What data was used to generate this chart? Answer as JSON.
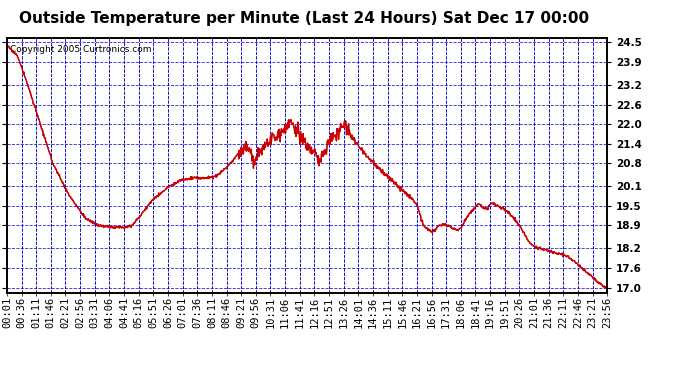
{
  "title": "Outside Temperature per Minute (Last 24 Hours) Sat Dec 17 00:00",
  "copyright": "Copyright 2005 Curtronics.com",
  "yticks": [
    17.0,
    17.6,
    18.2,
    18.9,
    19.5,
    20.1,
    20.8,
    21.4,
    22.0,
    22.6,
    23.2,
    23.9,
    24.5
  ],
  "ylim": [
    16.85,
    24.65
  ],
  "background_color": "#ffffff",
  "plot_bg_color": "#ffffff",
  "grid_color": "#0000cc",
  "line_color": "#cc0000",
  "title_fontsize": 11,
  "tick_fontsize": 7.5,
  "copyright_fontsize": 6.5,
  "xtick_labels": [
    "00:01",
    "00:36",
    "01:11",
    "01:46",
    "02:21",
    "02:56",
    "03:31",
    "04:06",
    "04:41",
    "05:16",
    "05:51",
    "06:26",
    "07:01",
    "07:36",
    "08:11",
    "08:46",
    "09:21",
    "09:56",
    "10:31",
    "11:06",
    "11:41",
    "12:16",
    "12:51",
    "13:26",
    "14:01",
    "14:36",
    "15:11",
    "15:46",
    "16:21",
    "16:56",
    "17:31",
    "18:06",
    "18:41",
    "19:16",
    "19:51",
    "20:26",
    "21:01",
    "21:36",
    "22:11",
    "22:46",
    "23:21",
    "23:56"
  ],
  "control_points": [
    [
      0,
      24.4
    ],
    [
      25,
      24.1
    ],
    [
      50,
      23.2
    ],
    [
      80,
      22.0
    ],
    [
      110,
      20.8
    ],
    [
      150,
      19.8
    ],
    [
      190,
      19.1
    ],
    [
      220,
      18.9
    ],
    [
      250,
      18.85
    ],
    [
      280,
      18.85
    ],
    [
      300,
      18.9
    ],
    [
      320,
      19.2
    ],
    [
      350,
      19.7
    ],
    [
      390,
      20.1
    ],
    [
      420,
      20.3
    ],
    [
      450,
      20.35
    ],
    [
      480,
      20.35
    ],
    [
      500,
      20.4
    ],
    [
      520,
      20.6
    ],
    [
      540,
      20.85
    ],
    [
      555,
      21.1
    ],
    [
      565,
      21.2
    ],
    [
      572,
      21.3
    ],
    [
      578,
      21.25
    ],
    [
      585,
      21.1
    ],
    [
      592,
      20.85
    ],
    [
      600,
      21.0
    ],
    [
      610,
      21.2
    ],
    [
      620,
      21.35
    ],
    [
      632,
      21.5
    ],
    [
      645,
      21.6
    ],
    [
      658,
      21.75
    ],
    [
      668,
      21.9
    ],
    [
      675,
      22.1
    ],
    [
      682,
      22.0
    ],
    [
      690,
      21.85
    ],
    [
      700,
      21.7
    ],
    [
      710,
      21.55
    ],
    [
      718,
      21.4
    ],
    [
      726,
      21.3
    ],
    [
      734,
      21.2
    ],
    [
      740,
      21.1
    ],
    [
      748,
      20.85
    ],
    [
      755,
      21.05
    ],
    [
      762,
      21.2
    ],
    [
      770,
      21.4
    ],
    [
      778,
      21.55
    ],
    [
      786,
      21.65
    ],
    [
      792,
      21.75
    ],
    [
      798,
      21.85
    ],
    [
      804,
      21.95
    ],
    [
      808,
      22.0
    ],
    [
      814,
      21.9
    ],
    [
      820,
      21.75
    ],
    [
      828,
      21.6
    ],
    [
      836,
      21.45
    ],
    [
      845,
      21.3
    ],
    [
      855,
      21.15
    ],
    [
      865,
      21.0
    ],
    [
      876,
      20.85
    ],
    [
      888,
      20.7
    ],
    [
      900,
      20.55
    ],
    [
      912,
      20.4
    ],
    [
      924,
      20.25
    ],
    [
      936,
      20.1
    ],
    [
      948,
      20.0
    ],
    [
      960,
      19.85
    ],
    [
      972,
      19.7
    ],
    [
      984,
      19.5
    ],
    [
      990,
      19.2
    ],
    [
      996,
      19.0
    ],
    [
      1002,
      18.85
    ],
    [
      1008,
      18.8
    ],
    [
      1014,
      18.75
    ],
    [
      1020,
      18.7
    ],
    [
      1026,
      18.75
    ],
    [
      1032,
      18.85
    ],
    [
      1040,
      18.9
    ],
    [
      1048,
      18.95
    ],
    [
      1056,
      18.9
    ],
    [
      1064,
      18.85
    ],
    [
      1072,
      18.8
    ],
    [
      1080,
      18.75
    ],
    [
      1090,
      18.85
    ],
    [
      1100,
      19.1
    ],
    [
      1112,
      19.3
    ],
    [
      1124,
      19.5
    ],
    [
      1130,
      19.55
    ],
    [
      1136,
      19.5
    ],
    [
      1142,
      19.45
    ],
    [
      1150,
      19.4
    ],
    [
      1158,
      19.55
    ],
    [
      1164,
      19.6
    ],
    [
      1170,
      19.55
    ],
    [
      1176,
      19.5
    ],
    [
      1182,
      19.45
    ],
    [
      1190,
      19.4
    ],
    [
      1198,
      19.35
    ],
    [
      1206,
      19.25
    ],
    [
      1216,
      19.1
    ],
    [
      1228,
      18.9
    ],
    [
      1240,
      18.65
    ],
    [
      1252,
      18.4
    ],
    [
      1264,
      18.25
    ],
    [
      1276,
      18.2
    ],
    [
      1290,
      18.15
    ],
    [
      1304,
      18.1
    ],
    [
      1320,
      18.05
    ],
    [
      1336,
      18.0
    ],
    [
      1350,
      17.9
    ],
    [
      1364,
      17.75
    ],
    [
      1378,
      17.6
    ],
    [
      1392,
      17.45
    ],
    [
      1406,
      17.3
    ],
    [
      1418,
      17.15
    ],
    [
      1428,
      17.05
    ],
    [
      1439,
      17.0
    ]
  ]
}
